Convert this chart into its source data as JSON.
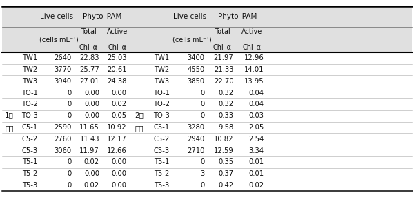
{
  "left_group_label_line1": "1차",
  "left_group_label_line2": "시험",
  "right_group_label_line1": "2차",
  "right_group_label_line2": "시험",
  "rows_left": [
    [
      "TW1",
      "2640",
      "22.83",
      "25.03"
    ],
    [
      "TW2",
      "3770",
      "25.77",
      "20.61"
    ],
    [
      "TW3",
      "3940",
      "27.01",
      "24.38"
    ],
    [
      "TO-1",
      "0",
      "0.00",
      "0.00"
    ],
    [
      "TO-2",
      "0",
      "0.00",
      "0.02"
    ],
    [
      "TO-3",
      "0",
      "0.00",
      "0.05"
    ],
    [
      "C5-1",
      "2590",
      "11.65",
      "10.92"
    ],
    [
      "C5-2",
      "2760",
      "11.43",
      "12.17"
    ],
    [
      "C5-3",
      "3060",
      "11.97",
      "12.66"
    ],
    [
      "T5-1",
      "0",
      "0.02",
      "0.00"
    ],
    [
      "T5-2",
      "0",
      "0.00",
      "0.00"
    ],
    [
      "T5-3",
      "0",
      "0.02",
      "0.00"
    ]
  ],
  "rows_right": [
    [
      "TW1",
      "3400",
      "21.97",
      "12.96"
    ],
    [
      "TW2",
      "4550",
      "21.33",
      "14.01"
    ],
    [
      "TW3",
      "3850",
      "22.70",
      "13.95"
    ],
    [
      "TO-1",
      "0",
      "0.32",
      "0.04"
    ],
    [
      "TO-2",
      "0",
      "0.32",
      "0.04"
    ],
    [
      "TO-3",
      "0",
      "0.33",
      "0.03"
    ],
    [
      "C5-1",
      "3280",
      "9.58",
      "2.05"
    ],
    [
      "C5-2",
      "2940",
      "10.82",
      "2.54"
    ],
    [
      "C5-3",
      "2710",
      "12.59",
      "3.34"
    ],
    [
      "T5-1",
      "0",
      "0.35",
      "0.01"
    ],
    [
      "T5-2",
      "3",
      "0.37",
      "0.01"
    ],
    [
      "T5-3",
      "0",
      "0.42",
      "0.02"
    ]
  ],
  "bg_header": "#e0e0e0",
  "bg_white": "#ffffff",
  "font_size": 7.2,
  "header_font_size": 7.5,
  "group_label_row_6": 5,
  "group_label_row_7": 6
}
